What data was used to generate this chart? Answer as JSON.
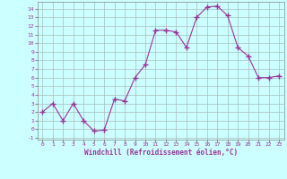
{
  "x": [
    0,
    1,
    2,
    3,
    4,
    5,
    6,
    7,
    8,
    9,
    10,
    11,
    12,
    13,
    14,
    15,
    16,
    17,
    18,
    19,
    20,
    21,
    22,
    23
  ],
  "y": [
    2,
    3,
    1,
    3,
    1,
    -0.2,
    -0.1,
    3.5,
    3.3,
    6,
    7.5,
    11.5,
    11.5,
    11.3,
    9.5,
    13,
    14.2,
    14.3,
    13.2,
    9.5,
    8.5,
    6,
    6,
    6.2
  ],
  "line_color": "#993399",
  "marker": "+",
  "marker_size": 4,
  "bg_color": "#ccffff",
  "grid_color": "#aabbbb",
  "xlabel": "Windchill (Refroidissement éolien,°C)",
  "tick_color": "#993399",
  "xlim": [
    -0.5,
    23.5
  ],
  "ylim": [
    -1.2,
    14.8
  ],
  "yticks": [
    -1,
    0,
    1,
    2,
    3,
    4,
    5,
    6,
    7,
    8,
    9,
    10,
    11,
    12,
    13,
    14
  ],
  "xticks": [
    0,
    1,
    2,
    3,
    4,
    5,
    6,
    7,
    8,
    9,
    10,
    11,
    12,
    13,
    14,
    15,
    16,
    17,
    18,
    19,
    20,
    21,
    22,
    23
  ],
  "spine_color": "#888888"
}
